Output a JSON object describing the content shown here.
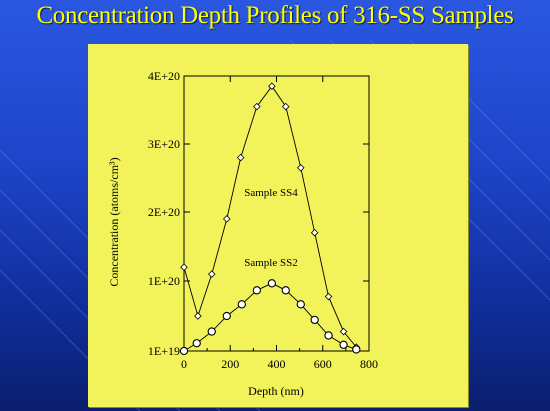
{
  "slide": {
    "title": "Concentration Depth Profiles of 316-SS Samples"
  },
  "colors": {
    "background": "#1d44c9",
    "title": "#ffff00",
    "panel": "#f2f25a",
    "line": "#000000",
    "marker_fill": "#ffffff"
  },
  "chart_data": {
    "type": "line",
    "title": "",
    "xlabel": "Depth (nm)",
    "ylabel": "Concentration (atoms/cm³)",
    "xlim": [
      0,
      800
    ],
    "ylim": [
      1e+19,
      4e+20
    ],
    "x_ticks": [
      0,
      200,
      400,
      600,
      800
    ],
    "y_ticks": [
      1e+19,
      1e+20,
      2e+20,
      3e+20,
      4e+20
    ],
    "y_tick_labels": [
      "1E+19",
      "1E+20",
      "2E+20",
      "3E+20",
      "4E+20"
    ],
    "grid": false,
    "series": [
      {
        "name": "Sample SS4",
        "marker": "diamond",
        "x": [
          0,
          60,
          120,
          185,
          245,
          315,
          380,
          440,
          505,
          565,
          625,
          690,
          745
        ],
        "y": [
          1.2e+20,
          5.5e+19,
          1.1e+20,
          1.9e+20,
          2.8e+20,
          3.55e+20,
          3.85e+20,
          3.55e+20,
          2.65e+20,
          1.7e+20,
          8e+19,
          3.5e+19,
          1.5e+19
        ]
      },
      {
        "name": "Sample SS2",
        "marker": "circle",
        "x": [
          0,
          55,
          120,
          185,
          250,
          315,
          380,
          440,
          505,
          565,
          625,
          690,
          745
        ],
        "y": [
          1e+19,
          2e+19,
          3.5e+19,
          5.5e+19,
          7e+19,
          8.8e+19,
          9.7e+19,
          8.8e+19,
          7e+19,
          5e+19,
          3e+19,
          1.8e+19,
          1.2e+19
        ]
      }
    ],
    "annotations": [
      "Sample SS4",
      "Sample SS2"
    ]
  }
}
